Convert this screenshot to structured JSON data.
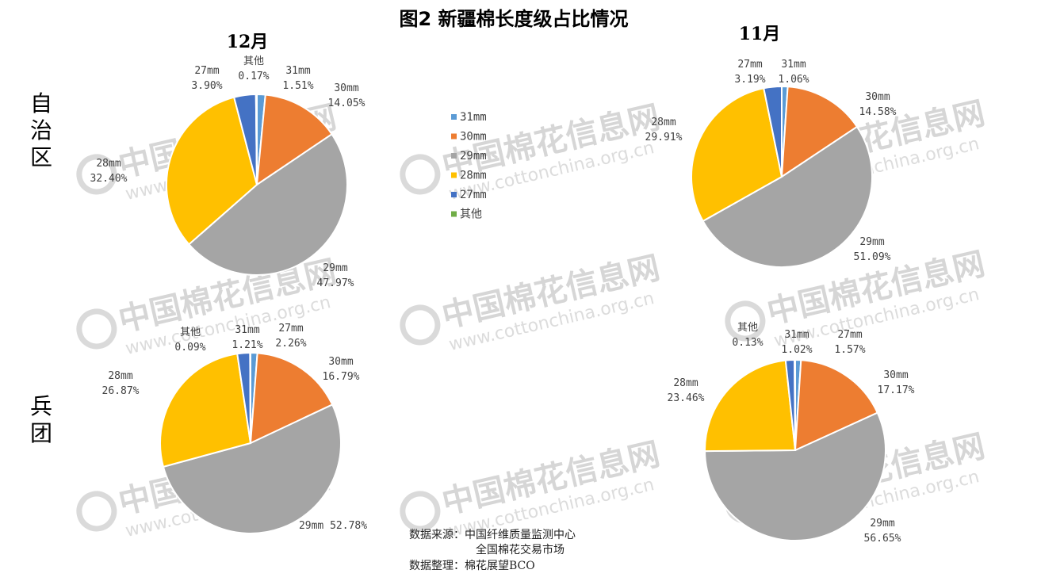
{
  "title": "图2 新疆棉长度级占比情况",
  "columns": [
    "12月",
    "11月"
  ],
  "rows": [
    "自治区",
    "兵团"
  ],
  "watermark": {
    "brand": "中国棉花信息网",
    "site": "www.cottonchina.org.cn"
  },
  "legend": [
    {
      "name": "31mm",
      "color": "#5B9BD5"
    },
    {
      "name": "30mm",
      "color": "#ED7D31"
    },
    {
      "name": "29mm",
      "color": "#A5A5A5"
    },
    {
      "name": "28mm",
      "color": "#FFC000"
    },
    {
      "name": "27mm",
      "color": "#4472C4"
    },
    {
      "name": "其他",
      "color": "#70AD47"
    }
  ],
  "source": {
    "line1": "数据来源：中国纤维质量监测中心",
    "line2": "全国棉花交易市场",
    "line3": "数据整理：棉花展望BCO"
  },
  "chart_data": [
    {
      "type": "pie",
      "row": "自治区",
      "column": "12月",
      "slices": [
        {
          "name": "31mm",
          "value": 1.51,
          "label": "1.51%"
        },
        {
          "name": "30mm",
          "value": 14.05,
          "label": "14.05%"
        },
        {
          "name": "29mm",
          "value": 47.97,
          "label": "47.97%"
        },
        {
          "name": "28mm",
          "value": 32.4,
          "label": "32.40%"
        },
        {
          "name": "27mm",
          "value": 3.9,
          "label": "3.90%"
        },
        {
          "name": "其他",
          "value": 0.17,
          "label": "0.17%"
        }
      ]
    },
    {
      "type": "pie",
      "row": "自治区",
      "column": "11月",
      "slices": [
        {
          "name": "31mm",
          "value": 1.06,
          "label": "1.06%"
        },
        {
          "name": "30mm",
          "value": 14.58,
          "label": "14.58%"
        },
        {
          "name": "29mm",
          "value": 51.09,
          "label": "51.09%"
        },
        {
          "name": "28mm",
          "value": 29.91,
          "label": "29.91%"
        },
        {
          "name": "27mm",
          "value": 3.19,
          "label": "3.19%"
        },
        {
          "name": "其他",
          "value": 0,
          "label": ""
        }
      ]
    },
    {
      "type": "pie",
      "row": "兵团",
      "column": "12月",
      "slices": [
        {
          "name": "31mm",
          "value": 1.21,
          "label": "1.21%"
        },
        {
          "name": "30mm",
          "value": 16.79,
          "label": "16.79%"
        },
        {
          "name": "29mm",
          "value": 52.78,
          "label": "52.78%"
        },
        {
          "name": "28mm",
          "value": 26.87,
          "label": "26.87%"
        },
        {
          "name": "27mm",
          "value": 2.26,
          "label": "2.26%"
        },
        {
          "name": "其他",
          "value": 0.09,
          "label": "0.09%"
        }
      ]
    },
    {
      "type": "pie",
      "row": "兵团",
      "column": "11月",
      "slices": [
        {
          "name": "31mm",
          "value": 1.02,
          "label": "1.02%"
        },
        {
          "name": "30mm",
          "value": 17.17,
          "label": "17.17%"
        },
        {
          "name": "29mm",
          "value": 56.65,
          "label": "56.65%"
        },
        {
          "name": "28mm",
          "value": 23.46,
          "label": "23.46%"
        },
        {
          "name": "27mm",
          "value": 1.57,
          "label": "1.57%"
        },
        {
          "name": "其他",
          "value": 0.13,
          "label": "0.13%"
        }
      ]
    }
  ]
}
